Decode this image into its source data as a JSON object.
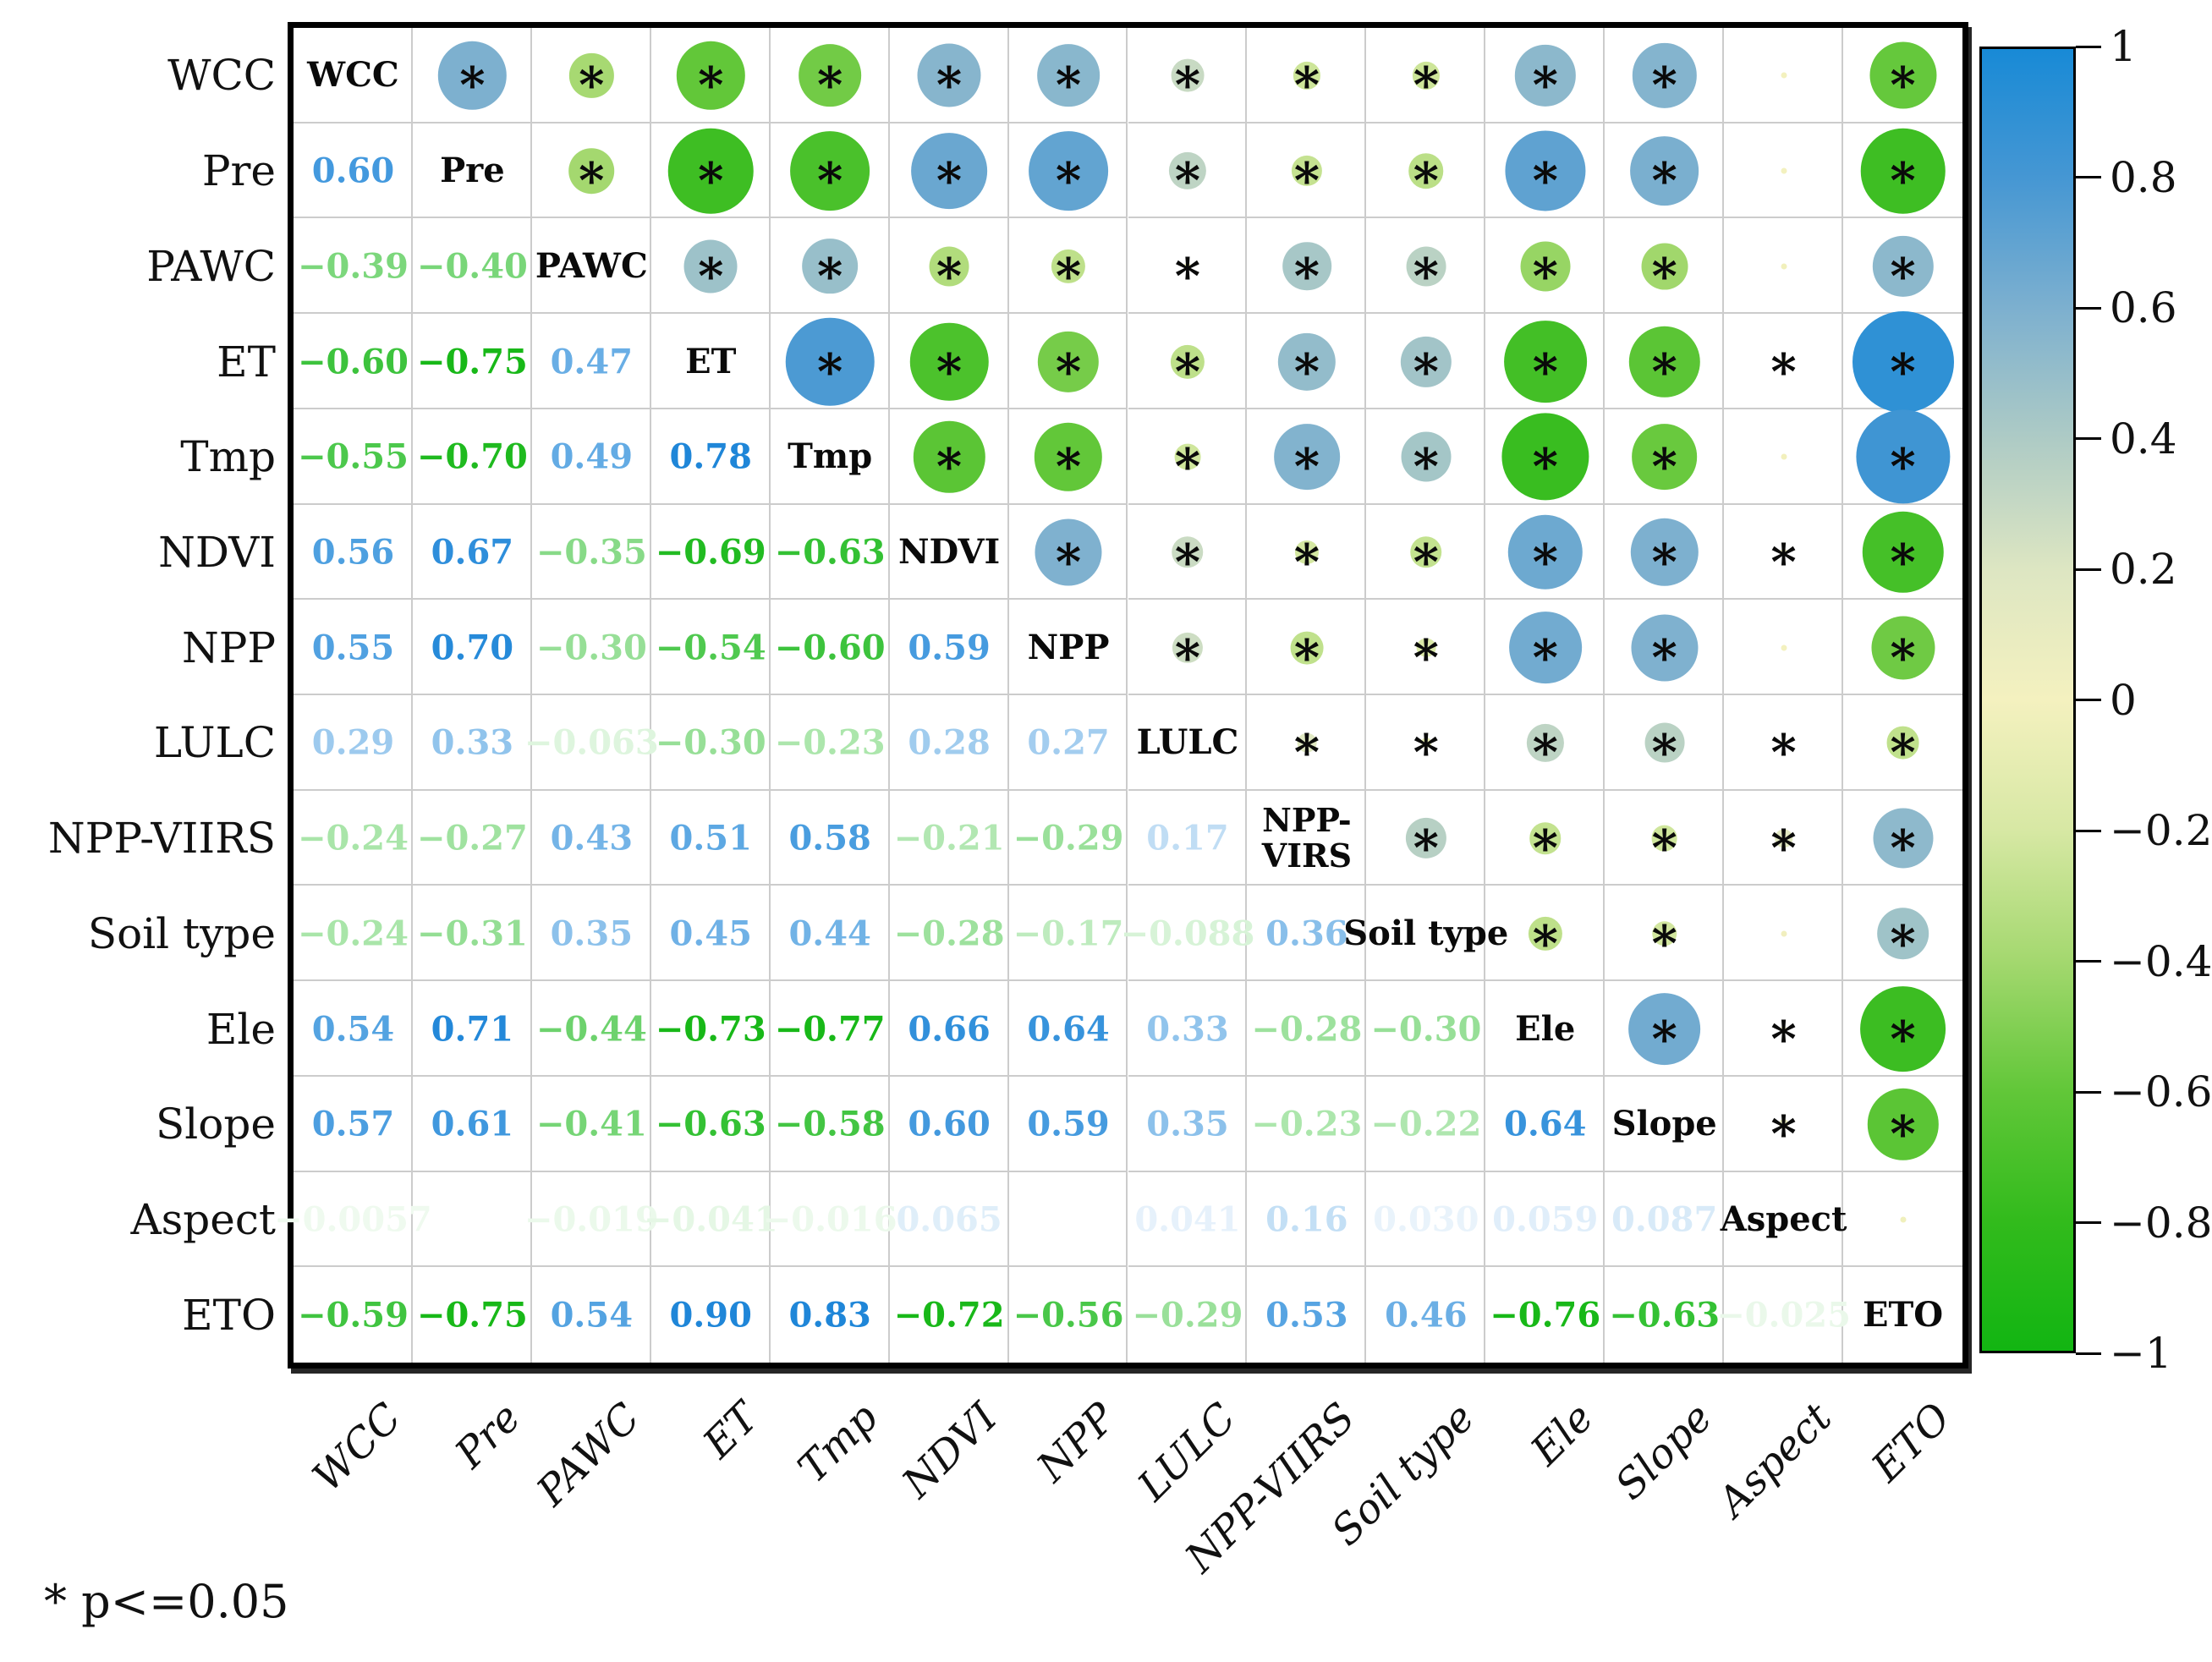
{
  "footnote": "* p<=0.05",
  "chart_data": {
    "type": "heatmap",
    "subtype": "correlation-matrix-bubble",
    "title": "",
    "variables": [
      "WCC",
      "Pre",
      "PAWC",
      "ET",
      "Tmp",
      "NDVI",
      "NPP",
      "LULC",
      "NPP-VIIRS",
      "Soil type",
      "Ele",
      "Slope",
      "Aspect",
      "ETO"
    ],
    "diagonal_labels": [
      "WCC",
      "Pre",
      "PAWC",
      "ET",
      "Tmp",
      "NDVI",
      "NPP",
      "LULC",
      "NPP-\nVIRS",
      "Soil type",
      "Ele",
      "Slope",
      "Aspect",
      "ETO"
    ],
    "legend_note": "lower triangle = correlation coefficients, upper triangle = circles sized/colored by correlation, * = significant (p<=0.05)",
    "colorbar": {
      "min": -1,
      "max": 1,
      "tick_labels": [
        "1",
        "0.8",
        "0.6",
        "0.4",
        "0.2",
        "0",
        "−0.2",
        "−0.4",
        "−0.6",
        "−0.8",
        "−1"
      ],
      "tick_values": [
        1,
        0.8,
        0.6,
        0.4,
        0.2,
        0,
        -0.2,
        -0.4,
        -0.6,
        -0.8,
        -1
      ],
      "stops": [
        {
          "v": 1.0,
          "color": "#188ad6"
        },
        {
          "v": 0.8,
          "color": "#4697d3"
        },
        {
          "v": 0.6,
          "color": "#7db0cf"
        },
        {
          "v": 0.4,
          "color": "#aecbc5"
        },
        {
          "v": 0.2,
          "color": "#dde6c2"
        },
        {
          "v": 0.0,
          "color": "#f4f1bf"
        },
        {
          "v": -0.2,
          "color": "#d7e8a4"
        },
        {
          "v": -0.4,
          "color": "#a4d86f"
        },
        {
          "v": -0.6,
          "color": "#62c739"
        },
        {
          "v": -0.8,
          "color": "#32bb1c"
        },
        {
          "v": -1.0,
          "color": "#12b512"
        }
      ]
    },
    "text_colors": {
      "positive": "#1f86d8",
      "negative": "#18b818"
    },
    "cells": [
      {
        "r": "Pre",
        "c": "WCC",
        "v": 0.6,
        "t": "0.60",
        "sig": true
      },
      {
        "r": "PAWC",
        "c": "WCC",
        "v": -0.39,
        "t": "−0.39",
        "sig": true
      },
      {
        "r": "PAWC",
        "c": "Pre",
        "v": -0.4,
        "t": "−0.40",
        "sig": true
      },
      {
        "r": "ET",
        "c": "WCC",
        "v": -0.6,
        "t": "−0.60",
        "sig": true
      },
      {
        "r": "ET",
        "c": "Pre",
        "v": -0.75,
        "t": "−0.75",
        "sig": true
      },
      {
        "r": "ET",
        "c": "PAWC",
        "v": 0.47,
        "t": "0.47",
        "sig": true
      },
      {
        "r": "Tmp",
        "c": "WCC",
        "v": -0.55,
        "t": "−0.55",
        "sig": true
      },
      {
        "r": "Tmp",
        "c": "Pre",
        "v": -0.7,
        "t": "−0.70",
        "sig": true
      },
      {
        "r": "Tmp",
        "c": "PAWC",
        "v": 0.49,
        "t": "0.49",
        "sig": true
      },
      {
        "r": "Tmp",
        "c": "ET",
        "v": 0.78,
        "t": "0.78",
        "sig": true
      },
      {
        "r": "NDVI",
        "c": "WCC",
        "v": 0.56,
        "t": "0.56",
        "sig": true
      },
      {
        "r": "NDVI",
        "c": "Pre",
        "v": 0.67,
        "t": "0.67",
        "sig": true
      },
      {
        "r": "NDVI",
        "c": "PAWC",
        "v": -0.35,
        "t": "−0.35",
        "sig": true
      },
      {
        "r": "NDVI",
        "c": "ET",
        "v": -0.69,
        "t": "−0.69",
        "sig": true
      },
      {
        "r": "NDVI",
        "c": "Tmp",
        "v": -0.63,
        "t": "−0.63",
        "sig": true
      },
      {
        "r": "NPP",
        "c": "WCC",
        "v": 0.55,
        "t": "0.55",
        "sig": true
      },
      {
        "r": "NPP",
        "c": "Pre",
        "v": 0.7,
        "t": "0.70",
        "sig": true
      },
      {
        "r": "NPP",
        "c": "PAWC",
        "v": -0.3,
        "t": "−0.30",
        "sig": true
      },
      {
        "r": "NPP",
        "c": "ET",
        "v": -0.54,
        "t": "−0.54",
        "sig": true
      },
      {
        "r": "NPP",
        "c": "Tmp",
        "v": -0.6,
        "t": "−0.60",
        "sig": true
      },
      {
        "r": "NPP",
        "c": "NDVI",
        "v": 0.59,
        "t": "0.59",
        "sig": true
      },
      {
        "r": "LULC",
        "c": "WCC",
        "v": 0.29,
        "t": "0.29",
        "sig": true
      },
      {
        "r": "LULC",
        "c": "Pre",
        "v": 0.33,
        "t": "0.33",
        "sig": true
      },
      {
        "r": "LULC",
        "c": "PAWC",
        "v": -0.063,
        "t": "−0.063",
        "sig": true
      },
      {
        "r": "LULC",
        "c": "ET",
        "v": -0.3,
        "t": "−0.30",
        "sig": true
      },
      {
        "r": "LULC",
        "c": "Tmp",
        "v": -0.23,
        "t": "−0.23",
        "sig": true
      },
      {
        "r": "LULC",
        "c": "NDVI",
        "v": 0.28,
        "t": "0.28",
        "sig": true
      },
      {
        "r": "LULC",
        "c": "NPP",
        "v": 0.27,
        "t": "0.27",
        "sig": true
      },
      {
        "r": "NPP-VIIRS",
        "c": "WCC",
        "v": -0.24,
        "t": "−0.24",
        "sig": true
      },
      {
        "r": "NPP-VIIRS",
        "c": "Pre",
        "v": -0.27,
        "t": "−0.27",
        "sig": true
      },
      {
        "r": "NPP-VIIRS",
        "c": "PAWC",
        "v": 0.43,
        "t": "0.43",
        "sig": true
      },
      {
        "r": "NPP-VIIRS",
        "c": "ET",
        "v": 0.51,
        "t": "0.51",
        "sig": true
      },
      {
        "r": "NPP-VIIRS",
        "c": "Tmp",
        "v": 0.58,
        "t": "0.58",
        "sig": true
      },
      {
        "r": "NPP-VIIRS",
        "c": "NDVI",
        "v": -0.21,
        "t": "−0.21",
        "sig": true
      },
      {
        "r": "NPP-VIIRS",
        "c": "NPP",
        "v": -0.29,
        "t": "−0.29",
        "sig": true
      },
      {
        "r": "NPP-VIIRS",
        "c": "LULC",
        "v": 0.17,
        "t": "0.17",
        "sig": true
      },
      {
        "r": "Soil type",
        "c": "WCC",
        "v": -0.24,
        "t": "−0.24",
        "sig": true
      },
      {
        "r": "Soil type",
        "c": "Pre",
        "v": -0.31,
        "t": "−0.31",
        "sig": true
      },
      {
        "r": "Soil type",
        "c": "PAWC",
        "v": 0.35,
        "t": "0.35",
        "sig": true
      },
      {
        "r": "Soil type",
        "c": "ET",
        "v": 0.45,
        "t": "0.45",
        "sig": true
      },
      {
        "r": "Soil type",
        "c": "Tmp",
        "v": 0.44,
        "t": "0.44",
        "sig": true
      },
      {
        "r": "Soil type",
        "c": "NDVI",
        "v": -0.28,
        "t": "−0.28",
        "sig": true
      },
      {
        "r": "Soil type",
        "c": "NPP",
        "v": -0.17,
        "t": "−0.17",
        "sig": true
      },
      {
        "r": "Soil type",
        "c": "LULC",
        "v": -0.088,
        "t": "−0.088",
        "sig": true
      },
      {
        "r": "Soil type",
        "c": "NPP-VIIRS",
        "v": 0.36,
        "t": "0.36",
        "sig": true
      },
      {
        "r": "Ele",
        "c": "WCC",
        "v": 0.54,
        "t": "0.54",
        "sig": true
      },
      {
        "r": "Ele",
        "c": "Pre",
        "v": 0.71,
        "t": "0.71",
        "sig": true
      },
      {
        "r": "Ele",
        "c": "PAWC",
        "v": -0.44,
        "t": "−0.44",
        "sig": true
      },
      {
        "r": "Ele",
        "c": "ET",
        "v": -0.73,
        "t": "−0.73",
        "sig": true
      },
      {
        "r": "Ele",
        "c": "Tmp",
        "v": -0.77,
        "t": "−0.77",
        "sig": true
      },
      {
        "r": "Ele",
        "c": "NDVI",
        "v": 0.66,
        "t": "0.66",
        "sig": true
      },
      {
        "r": "Ele",
        "c": "NPP",
        "v": 0.64,
        "t": "0.64",
        "sig": true
      },
      {
        "r": "Ele",
        "c": "LULC",
        "v": 0.33,
        "t": "0.33",
        "sig": true
      },
      {
        "r": "Ele",
        "c": "NPP-VIIRS",
        "v": -0.28,
        "t": "−0.28",
        "sig": true
      },
      {
        "r": "Ele",
        "c": "Soil type",
        "v": -0.3,
        "t": "−0.30",
        "sig": true
      },
      {
        "r": "Slope",
        "c": "WCC",
        "v": 0.57,
        "t": "0.57",
        "sig": true
      },
      {
        "r": "Slope",
        "c": "Pre",
        "v": 0.61,
        "t": "0.61",
        "sig": true
      },
      {
        "r": "Slope",
        "c": "PAWC",
        "v": -0.41,
        "t": "−0.41",
        "sig": true
      },
      {
        "r": "Slope",
        "c": "ET",
        "v": -0.63,
        "t": "−0.63",
        "sig": true
      },
      {
        "r": "Slope",
        "c": "Tmp",
        "v": -0.58,
        "t": "−0.58",
        "sig": true
      },
      {
        "r": "Slope",
        "c": "NDVI",
        "v": 0.6,
        "t": "0.60",
        "sig": true
      },
      {
        "r": "Slope",
        "c": "NPP",
        "v": 0.59,
        "t": "0.59",
        "sig": true
      },
      {
        "r": "Slope",
        "c": "LULC",
        "v": 0.35,
        "t": "0.35",
        "sig": true
      },
      {
        "r": "Slope",
        "c": "NPP-VIIRS",
        "v": -0.23,
        "t": "−0.23",
        "sig": true
      },
      {
        "r": "Slope",
        "c": "Soil type",
        "v": -0.22,
        "t": "−0.22",
        "sig": true
      },
      {
        "r": "Slope",
        "c": "Ele",
        "v": 0.64,
        "t": "0.64",
        "sig": true
      },
      {
        "r": "Aspect",
        "c": "WCC",
        "v": -0.0057,
        "t": "−0.0057",
        "sig": false
      },
      {
        "r": "Aspect",
        "c": "Pre",
        "v": null,
        "t": "",
        "sig": false
      },
      {
        "r": "Aspect",
        "c": "PAWC",
        "v": -0.019,
        "t": "−0.019",
        "sig": false
      },
      {
        "r": "Aspect",
        "c": "ET",
        "v": -0.041,
        "t": "−0.041",
        "sig": true
      },
      {
        "r": "Aspect",
        "c": "Tmp",
        "v": -0.016,
        "t": "−0.016",
        "sig": false
      },
      {
        "r": "Aspect",
        "c": "NDVI",
        "v": 0.065,
        "t": "0.065",
        "sig": true
      },
      {
        "r": "Aspect",
        "c": "NPP",
        "v": null,
        "t": "",
        "sig": false
      },
      {
        "r": "Aspect",
        "c": "LULC",
        "v": 0.041,
        "t": "0.041",
        "sig": true
      },
      {
        "r": "Aspect",
        "c": "NPP-VIIRS",
        "v": 0.16,
        "t": "0.16",
        "sig": true
      },
      {
        "r": "Aspect",
        "c": "Soil type",
        "v": 0.03,
        "t": "0.030",
        "sig": false
      },
      {
        "r": "Aspect",
        "c": "Ele",
        "v": 0.059,
        "t": "0.059",
        "sig": true
      },
      {
        "r": "Aspect",
        "c": "Slope",
        "v": 0.087,
        "t": "0.087",
        "sig": true
      },
      {
        "r": "ETO",
        "c": "WCC",
        "v": -0.59,
        "t": "−0.59",
        "sig": true
      },
      {
        "r": "ETO",
        "c": "Pre",
        "v": -0.75,
        "t": "−0.75",
        "sig": true
      },
      {
        "r": "ETO",
        "c": "PAWC",
        "v": 0.54,
        "t": "0.54",
        "sig": true
      },
      {
        "r": "ETO",
        "c": "ET",
        "v": 0.9,
        "t": "0.90",
        "sig": true
      },
      {
        "r": "ETO",
        "c": "Tmp",
        "v": 0.83,
        "t": "0.83",
        "sig": true
      },
      {
        "r": "ETO",
        "c": "NDVI",
        "v": -0.72,
        "t": "−0.72",
        "sig": true
      },
      {
        "r": "ETO",
        "c": "NPP",
        "v": -0.56,
        "t": "−0.56",
        "sig": true
      },
      {
        "r": "ETO",
        "c": "LULC",
        "v": -0.29,
        "t": "−0.29",
        "sig": true
      },
      {
        "r": "ETO",
        "c": "NPP-VIIRS",
        "v": 0.53,
        "t": "0.53",
        "sig": true
      },
      {
        "r": "ETO",
        "c": "Soil type",
        "v": 0.46,
        "t": "0.46",
        "sig": true
      },
      {
        "r": "ETO",
        "c": "Ele",
        "v": -0.76,
        "t": "−0.76",
        "sig": true
      },
      {
        "r": "ETO",
        "c": "Slope",
        "v": -0.63,
        "t": "−0.63",
        "sig": true
      },
      {
        "r": "ETO",
        "c": "Aspect",
        "v": -0.025,
        "t": "−0.025",
        "sig": false
      }
    ]
  }
}
